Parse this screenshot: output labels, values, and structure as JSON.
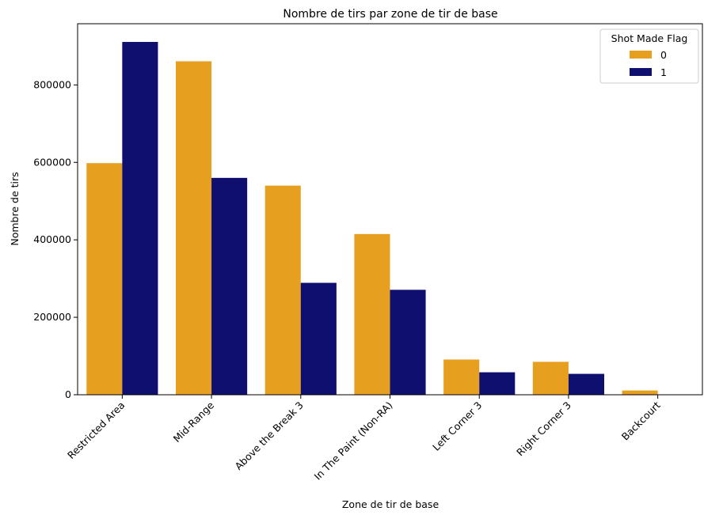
{
  "chart_data": {
    "type": "bar",
    "title": "Nombre de tirs par zone de tir de base",
    "xlabel": "Zone de tir de base",
    "ylabel": "Nombre de tirs",
    "categories": [
      "Restricted Area",
      "Mid-Range",
      "Above the Break 3",
      "In The Paint (Non-RA)",
      "Left Corner 3",
      "Right Corner 3",
      "Backcourt"
    ],
    "series": [
      {
        "name": "0",
        "color": "#e69f1e",
        "values": [
          598000,
          861000,
          540000,
          415000,
          91000,
          85000,
          11000
        ]
      },
      {
        "name": "1",
        "color": "#0f0f70",
        "values": [
          911000,
          560000,
          289000,
          271000,
          58000,
          54000,
          1000
        ]
      }
    ],
    "ylim": [
      0,
      958000
    ],
    "yticks": [
      0,
      200000,
      400000,
      600000,
      800000
    ],
    "ytick_labels": [
      "0",
      "200000",
      "400000",
      "600000",
      "800000"
    ],
    "legend": {
      "title": "Shot Made Flag",
      "position": "top-right"
    },
    "grid": false
  }
}
